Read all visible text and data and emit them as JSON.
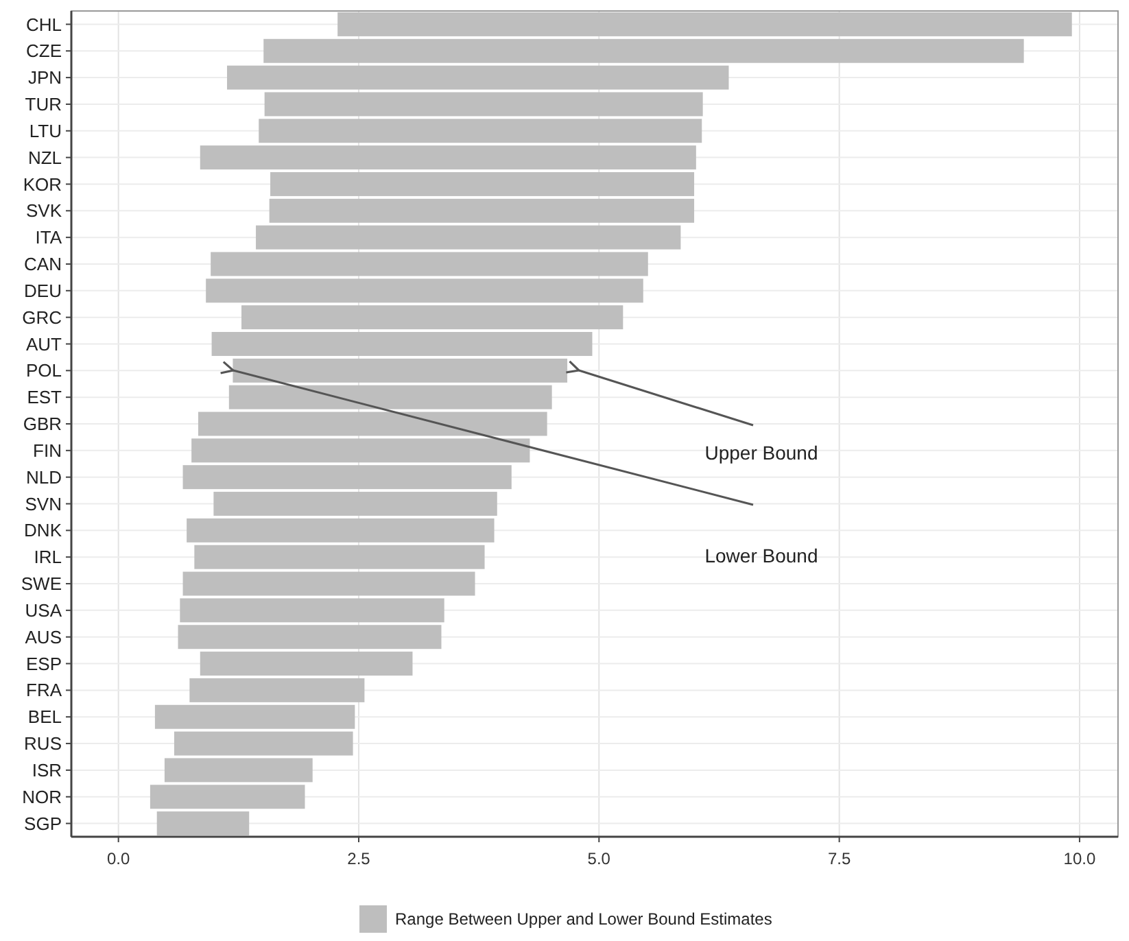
{
  "chart_data": {
    "type": "bar",
    "orientation": "horizontal",
    "categories": [
      "CHL",
      "CZE",
      "JPN",
      "TUR",
      "LTU",
      "NZL",
      "KOR",
      "SVK",
      "ITA",
      "CAN",
      "DEU",
      "GRC",
      "AUT",
      "POL",
      "EST",
      "GBR",
      "FIN",
      "NLD",
      "SVN",
      "DNK",
      "IRL",
      "SWE",
      "USA",
      "AUS",
      "ESP",
      "FRA",
      "BEL",
      "RUS",
      "ISR",
      "NOR",
      "SGP"
    ],
    "series": [
      {
        "name": "Range Between Upper and Lower Bound Estimates",
        "color": "#bebebe",
        "base": [
          2.28,
          1.51,
          1.13,
          1.52,
          1.46,
          0.85,
          1.58,
          1.57,
          1.43,
          0.96,
          0.91,
          1.28,
          0.97,
          1.19,
          1.15,
          0.83,
          0.76,
          0.67,
          0.99,
          0.71,
          0.79,
          0.67,
          0.64,
          0.62,
          0.85,
          0.74,
          0.38,
          0.58,
          0.48,
          0.33,
          0.4
        ],
        "values": [
          7.64,
          7.91,
          5.22,
          4.56,
          4.61,
          5.16,
          4.41,
          4.42,
          4.42,
          4.55,
          4.55,
          3.97,
          3.96,
          3.48,
          3.36,
          3.63,
          3.52,
          3.42,
          2.95,
          3.2,
          3.02,
          3.04,
          2.75,
          2.74,
          2.21,
          1.82,
          2.08,
          1.86,
          1.54,
          1.61,
          0.96
        ]
      }
    ],
    "xlim": [
      -0.49,
      10.4
    ],
    "xticks": [
      {
        "value": 0,
        "label": "0.0"
      },
      {
        "value": 2.5,
        "label": "2.5"
      },
      {
        "value": 5,
        "label": "5.0"
      },
      {
        "value": 7.5,
        "label": "7.5"
      },
      {
        "value": 10,
        "label": "10.0"
      }
    ],
    "grid": true,
    "legend": "bottom",
    "annotations": [
      "Upper Bound",
      "Lower Bound"
    ]
  }
}
